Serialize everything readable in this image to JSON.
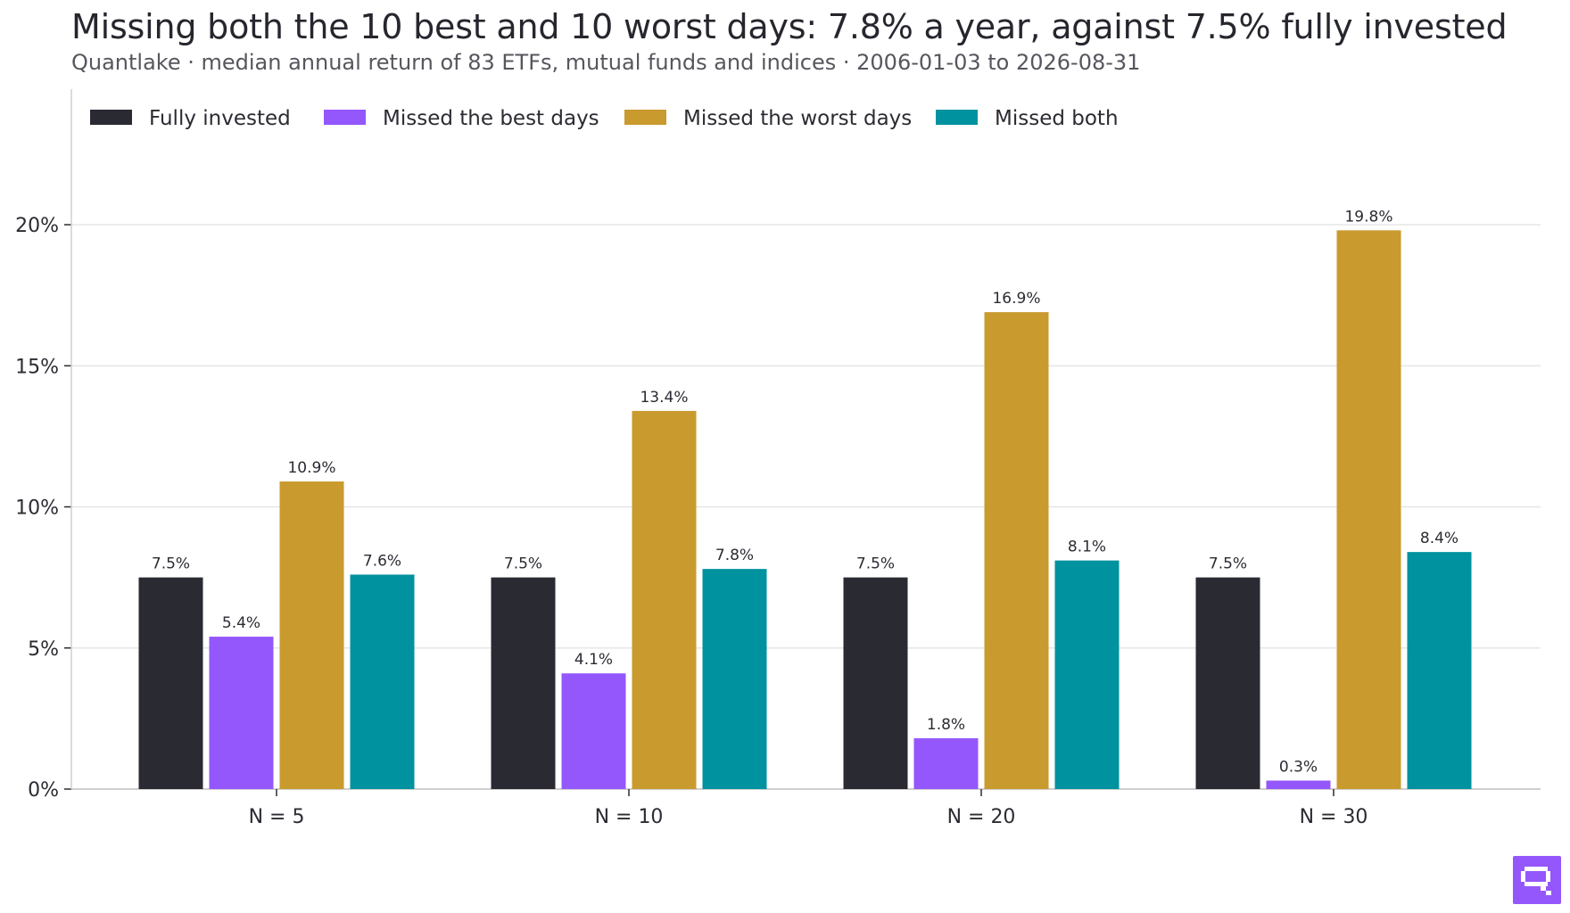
{
  "title": "Missing both the 10 best and 10 worst days: 7.8% a year, against 7.5% fully invested",
  "subtitle": "Quantlake · median annual return of 83 ETFs, mutual funds and indices · 2006-01-03 to 2026-08-31",
  "colors": {
    "fully_invested": "#2a2a33",
    "missed_best": "#9457fb",
    "missed_worst": "#c99a2e",
    "missed_both": "#00929f",
    "grid": "#e6e6e6",
    "axis": "#cfcfcf",
    "logo": "#9457fb"
  },
  "logo_icon": "quantlake-logo-icon",
  "chart_data": {
    "type": "bar",
    "categories": [
      "N = 5",
      "N = 10",
      "N = 20",
      "N = 30"
    ],
    "series": [
      {
        "name": "Fully invested",
        "values": [
          7.5,
          7.5,
          7.5,
          7.5
        ]
      },
      {
        "name": "Missed the best days",
        "values": [
          5.4,
          4.1,
          1.8,
          0.3
        ]
      },
      {
        "name": "Missed the worst days",
        "values": [
          10.9,
          13.4,
          16.9,
          19.8
        ]
      },
      {
        "name": "Missed both",
        "values": [
          7.6,
          7.8,
          8.1,
          8.4
        ]
      }
    ],
    "value_labels": [
      [
        "7.5%",
        "7.5%",
        "7.5%",
        "7.5%"
      ],
      [
        "5.4%",
        "4.1%",
        "1.8%",
        "0.3%"
      ],
      [
        "10.9%",
        "13.4%",
        "16.9%",
        "19.8%"
      ],
      [
        "7.6%",
        "7.8%",
        "8.1%",
        "8.4%"
      ]
    ],
    "yticks": [
      0,
      5,
      10,
      15,
      20
    ],
    "ytick_labels": [
      "0%",
      "5%",
      "10%",
      "15%",
      "20%"
    ],
    "ylim": [
      0,
      24.5
    ],
    "grid": true,
    "legend_position": "top-left"
  }
}
